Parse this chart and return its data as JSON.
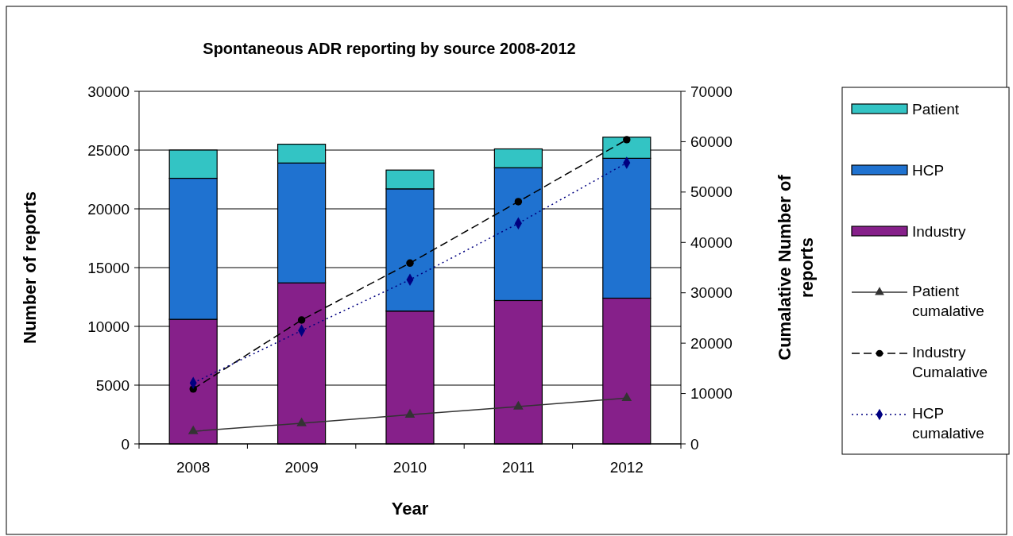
{
  "chart_data": {
    "type": "bar",
    "title": "Spontaneous ADR reporting by source 2008-2012",
    "xlabel": "Year",
    "ylabel": "Number of reports",
    "y2label": "Cumalative Number of reports",
    "categories": [
      "2008",
      "2009",
      "2010",
      "2011",
      "2012"
    ],
    "stacked": true,
    "series": [
      {
        "name": "Industry",
        "color": "#86208a",
        "values": [
          10600,
          13700,
          11300,
          12200,
          12400
        ]
      },
      {
        "name": "HCP",
        "color": "#1f72d0",
        "values": [
          12000,
          10200,
          10400,
          11300,
          11900
        ]
      },
      {
        "name": "Patient",
        "color": "#33c4c4",
        "values": [
          2400,
          1600,
          1600,
          1600,
          1800
        ]
      },
      {
        "name": "Patient cumalative",
        "type": "line",
        "axis": "y2",
        "color": "#333333",
        "marker": "triangle",
        "line_style": "solid",
        "values": [
          2500,
          4100,
          5800,
          7400,
          9100
        ]
      },
      {
        "name": "Industry Cumalative",
        "type": "line",
        "axis": "y2",
        "color": "#000000",
        "marker": "circle",
        "line_style": "dashed",
        "values": [
          10900,
          24600,
          35900,
          48100,
          60400
        ]
      },
      {
        "name": "HCP cumalative",
        "type": "line",
        "axis": "y2",
        "color": "#000080",
        "marker": "diamond",
        "line_style": "dotted",
        "values": [
          12100,
          22500,
          32600,
          43800,
          55800
        ]
      }
    ],
    "ylim": [
      0,
      30000
    ],
    "yticks": [
      0,
      5000,
      10000,
      15000,
      20000,
      25000,
      30000
    ],
    "y2lim": [
      0,
      70000
    ],
    "y2ticks": [
      0,
      10000,
      20000,
      30000,
      40000,
      50000,
      60000,
      70000
    ],
    "grid": "y",
    "legend": "right"
  }
}
